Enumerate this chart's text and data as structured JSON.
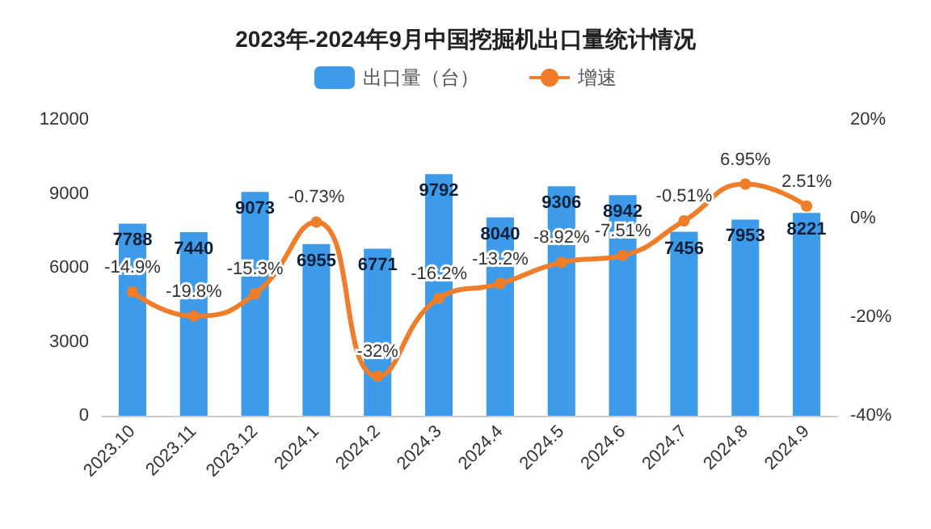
{
  "chart_data": {
    "type": "bar",
    "title": "2023年-2024年9月中国挖掘机出口量统计情况",
    "categories": [
      "2023.10",
      "2023.11",
      "2023.12",
      "2024.1",
      "2024.2",
      "2024.3",
      "2024.4",
      "2024.5",
      "2024.6",
      "2024.7",
      "2024.8",
      "2024.9"
    ],
    "series": [
      {
        "name": "出口量（台）",
        "color": "#3d9be9",
        "values": [
          7788,
          7440,
          9073,
          6955,
          6771,
          9792,
          8040,
          9306,
          8942,
          7456,
          7953,
          8221
        ],
        "value_labels": [
          "7788",
          "7440",
          "9073",
          "6955",
          "6771",
          "9792",
          "8040",
          "9306",
          "8942",
          "7456",
          "7953",
          "8221"
        ]
      },
      {
        "name": "增速",
        "type": "line",
        "axis": "y2",
        "color": "#f07d2a",
        "values": [
          -14.9,
          -19.8,
          -15.3,
          -0.73,
          -32,
          -16.2,
          -13.2,
          -8.92,
          -7.51,
          -0.51,
          6.95,
          2.51
        ],
        "value_labels": [
          "-14.9%",
          "-19.8%",
          "-15.3%",
          "-0.73%",
          "-32%",
          "-16.2%",
          "-13.2%",
          "-8.92%",
          "-7.51%",
          "-0.51%",
          "6.95%",
          "2.51%"
        ]
      }
    ],
    "ylim": [
      0,
      12000
    ],
    "yticks": [
      0,
      3000,
      6000,
      9000,
      12000
    ],
    "y2lim": [
      -40,
      20
    ],
    "y2ticks": [
      {
        "value": -40,
        "label": "-40%"
      },
      {
        "value": -20,
        "label": "-20%"
      },
      {
        "value": 0,
        "label": "0%"
      },
      {
        "value": 20,
        "label": "20%"
      }
    ],
    "legend": "top",
    "grid": false,
    "marker": "circle",
    "line_style": "solid"
  }
}
